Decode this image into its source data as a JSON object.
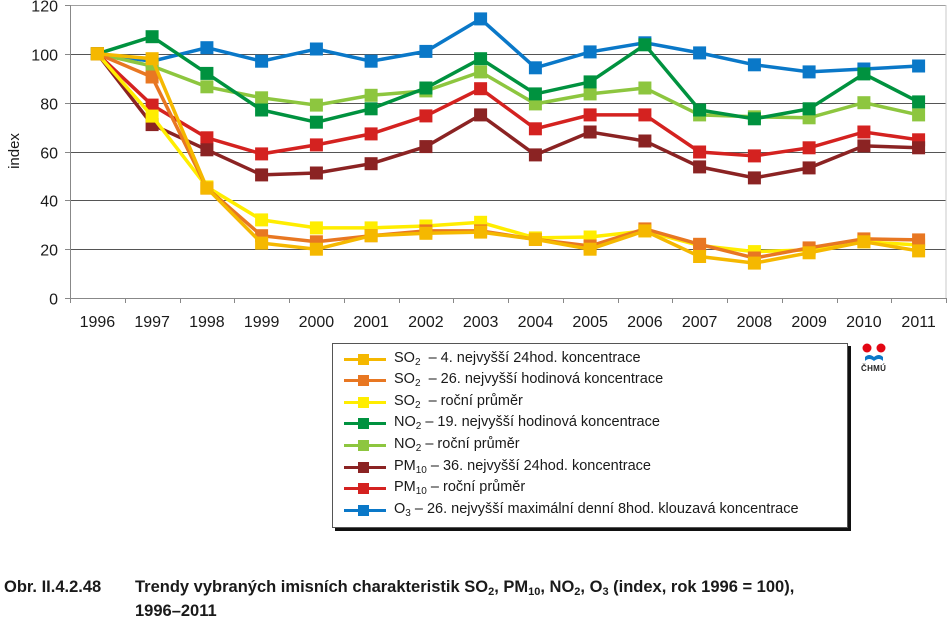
{
  "chart_data": {
    "type": "line",
    "title": "",
    "xlabel": "",
    "ylabel": "index",
    "ylim": [
      0,
      120
    ],
    "yticks": [
      0,
      20,
      40,
      60,
      80,
      100,
      120
    ],
    "grid": true,
    "legend_position": "bottom",
    "categories": [
      "1996",
      "1997",
      "1998",
      "1999",
      "2000",
      "2001",
      "2002",
      "2003",
      "2004",
      "2005",
      "2006",
      "2007",
      "2008",
      "2009",
      "2010",
      "2011"
    ],
    "series": [
      {
        "id": "so2-4",
        "pollutant": "SO",
        "sub": "2",
        "desc": "  – 4. nejvyšší 24hod. koncentrace",
        "color": "#F5B800",
        "values": [
          100,
          98,
          45,
          22.5,
          20,
          25.5,
          26.5,
          27,
          24,
          20,
          27.5,
          17,
          14.3,
          18.5,
          23,
          19.3
        ]
      },
      {
        "id": "so2-26",
        "pollutant": "SO",
        "sub": "2",
        "desc": "  – 26. nejvyšší hodinová koncentrace",
        "color": "#E87722",
        "values": [
          100,
          90.5,
          45,
          25.5,
          23,
          25.5,
          27.5,
          27.5,
          24,
          21.3,
          28.3,
          22,
          16.4,
          20.5,
          24.2,
          23.8
        ]
      },
      {
        "id": "so2-avg",
        "pollutant": "SO",
        "sub": "2",
        "desc": "  – roční průměr",
        "color": "#FFED00",
        "values": [
          100,
          74.5,
          45.5,
          32,
          28.7,
          28.7,
          29.5,
          31,
          24.6,
          25,
          27.5,
          21.5,
          19,
          19.7,
          23,
          21.7
        ]
      },
      {
        "id": "no2-19",
        "pollutant": "NO",
        "sub": "2",
        "desc": " – 19. nejvyšší hodinová koncentrace",
        "color": "#00923F",
        "values": [
          100,
          107,
          92,
          77,
          72,
          77.5,
          86,
          98,
          83.6,
          88.5,
          103.7,
          77,
          73.4,
          77.5,
          91.8,
          80.3
        ]
      },
      {
        "id": "no2-avg",
        "pollutant": "NO",
        "sub": "2",
        "desc": " – roční průměr",
        "color": "#8DC63F",
        "values": [
          100,
          95,
          86.5,
          82,
          79,
          83,
          84.8,
          92.6,
          79.5,
          83.6,
          86,
          75,
          74.2,
          73.8,
          80,
          75
        ]
      },
      {
        "id": "pm10-36",
        "pollutant": "PM",
        "sub": "10",
        "desc": " – 36. nejvyšší 24hod. koncentrace",
        "color": "#8B2323",
        "values": [
          100,
          71,
          60.7,
          50.4,
          51.2,
          55,
          62,
          75,
          58.6,
          68,
          64.3,
          53.7,
          49.2,
          53.3,
          62.3,
          61.5
        ]
      },
      {
        "id": "pm10-avg",
        "pollutant": "PM",
        "sub": "10",
        "desc": " – roční průměr",
        "color": "#D42220",
        "values": [
          100,
          79,
          65.6,
          59,
          62.7,
          67.2,
          74.6,
          85.7,
          69.3,
          75,
          75,
          59.8,
          58.2,
          61.5,
          68,
          64.8
        ]
      },
      {
        "id": "o3-26",
        "pollutant": "O",
        "sub": "3",
        "desc": " – 26. nejvyšší maximální denní 8hod. klouzavá koncentrace",
        "color": "#0A78C8",
        "values": [
          100,
          97,
          102.5,
          97,
          102,
          97,
          101,
          114.3,
          94.3,
          100.8,
          104.5,
          100.4,
          95.5,
          92.6,
          93.8,
          95
        ]
      }
    ]
  },
  "logo": {
    "text": "ČHMÚ",
    "colors": {
      "red": "#E30613",
      "blue": "#0A78C8"
    }
  },
  "caption": {
    "number": "Obr. II.4.2.48",
    "title_parts": {
      "p1": "Trendy vybraných imisních charakteristik SO",
      "s1": "2",
      "p2": ", PM",
      "s2": "10",
      "p3": ", NO",
      "s3": "2",
      "p4": ", O",
      "s4": "3",
      "p5": " (index, rok 1996 = 100),"
    },
    "line2": "1996–2011"
  }
}
